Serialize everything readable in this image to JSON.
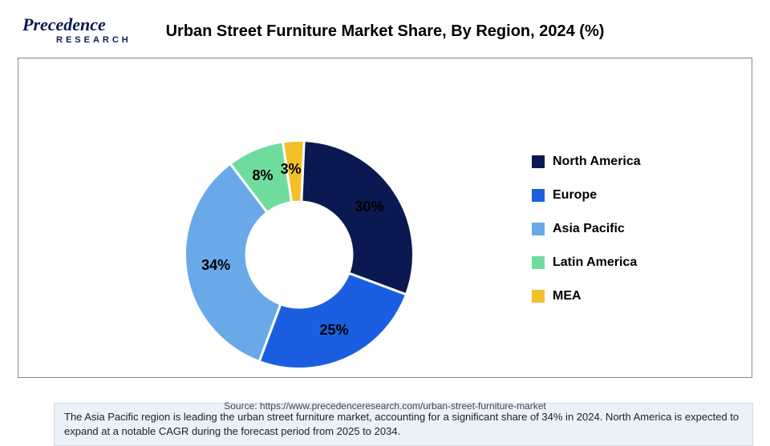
{
  "logo": {
    "main": "Precedence",
    "sub": "RESEARCH"
  },
  "title": "Urban Street Furniture Market Share, By Region, 2024 (%)",
  "chart": {
    "type": "donut",
    "inner_radius_ratio": 0.45,
    "background_color": "#ffffff",
    "slices": [
      {
        "label": "North America",
        "value": 30,
        "color": "#0a1952",
        "pct_text": "30%"
      },
      {
        "label": "Europe",
        "value": 25,
        "color": "#1b5fe0",
        "pct_text": "25%"
      },
      {
        "label": "Asia Pacific",
        "value": 34,
        "color": "#6aa9e8",
        "pct_text": "34%"
      },
      {
        "label": "Latin America",
        "value": 8,
        "color": "#6fdc9e",
        "pct_text": "8%"
      },
      {
        "label": "MEA",
        "value": 3,
        "color": "#f2c028",
        "pct_text": "3%"
      }
    ],
    "label_fontsize": 18,
    "label_fontweight": "700",
    "legend_fontsize": 16,
    "legend_fontweight": "700"
  },
  "caption": "The Asia Pacific region is leading the urban street furniture market, accounting for a significant share of 34% in 2024. North America is expected to expand at a notable CAGR during the forecast period from 2025 to 2034.",
  "source": "Source: https://www.precedenceresearch.com/urban-street-furniture-market"
}
